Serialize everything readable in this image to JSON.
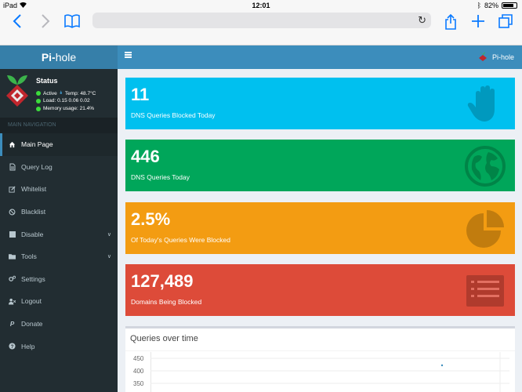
{
  "status_bar": {
    "device": "iPad",
    "time": "12:01",
    "battery": "82%",
    "battery_level": 0.82
  },
  "browser": {
    "back_icon": "chevron-left-icon",
    "forward_icon": "chevron-right-icon",
    "bookmarks_icon": "book-icon",
    "reload_icon": "reload-icon",
    "share_icon": "share-icon",
    "new_tab_icon": "plus-icon",
    "tabs_icon": "tabs-icon"
  },
  "header": {
    "logo_bold": "Pi-",
    "logo_rest": "hole",
    "brand": "Pi-hole"
  },
  "sidebar": {
    "status_title": "Status",
    "status_active": "Active",
    "temp": "Temp: 48.7°C",
    "load": "Load:  0.15  0.06  0.02",
    "memory": "Memory usage:  21.4%",
    "nav_header": "MAIN NAVIGATION",
    "items": [
      {
        "label": "Main Page",
        "icon": "home-icon"
      },
      {
        "label": "Query Log",
        "icon": "file-icon"
      },
      {
        "label": "Whitelist",
        "icon": "edit-icon"
      },
      {
        "label": "Blacklist",
        "icon": "ban-icon"
      },
      {
        "label": "Disable",
        "icon": "stop-icon"
      },
      {
        "label": "Tools",
        "icon": "folder-icon"
      },
      {
        "label": "Settings",
        "icon": "gears-icon"
      },
      {
        "label": "Logout",
        "icon": "user-times-icon"
      },
      {
        "label": "Donate",
        "icon": "paypal-icon"
      },
      {
        "label": "Help",
        "icon": "question-icon"
      }
    ]
  },
  "stats": [
    {
      "value": "11",
      "label": "DNS Queries Blocked Today",
      "icon": "hand-icon",
      "color": "#00c0ef"
    },
    {
      "value": "446",
      "label": "DNS Queries Today",
      "icon": "globe-icon",
      "color": "#00a65a"
    },
    {
      "value": "2.5%",
      "label": "Of Today's Queries Were Blocked",
      "icon": "pie-chart-icon",
      "color": "#f39c12"
    },
    {
      "value": "127,489",
      "label": "Domains Being Blocked",
      "icon": "list-icon",
      "color": "#dd4b39"
    }
  ],
  "chart": {
    "title": "Queries over time",
    "y_ticks": [
      "450",
      "400",
      "350"
    ]
  }
}
